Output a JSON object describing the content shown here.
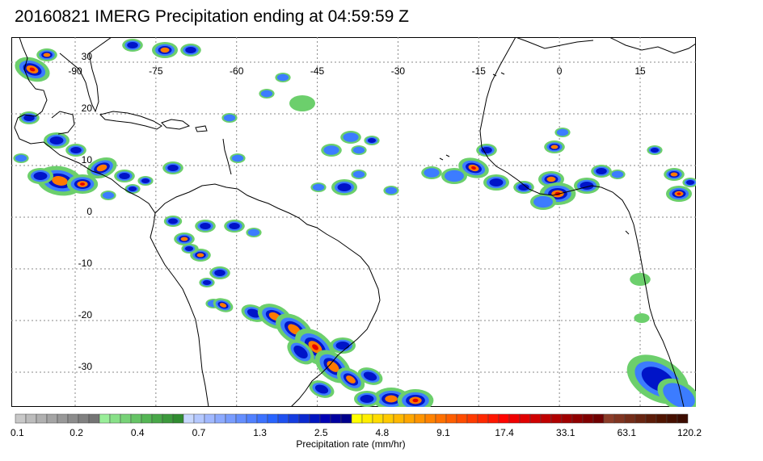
{
  "title": "20160821 IMERG Precipitation ending at 04:59:59 Z",
  "map": {
    "lon_labels": [
      "-90",
      "-75",
      "-60",
      "-45",
      "-30",
      "-15",
      "0",
      "15"
    ],
    "lat_labels": [
      "30",
      "20",
      "10",
      "0",
      "-10",
      "-20",
      "-30"
    ]
  },
  "colorbar": {
    "label": "Precipitation rate (mm/hr)",
    "tick_labels": [
      "0.1",
      "0.2",
      "0.4",
      "0.7",
      "1.3",
      "2.5",
      "4.8",
      "9.1",
      "17.4",
      "33.1",
      "63.1",
      "120.2"
    ],
    "colors": [
      "#c8c8c8",
      "#bcbcbc",
      "#b0b0b0",
      "#a4a4a4",
      "#989898",
      "#8c8c8c",
      "#808080",
      "#747474",
      "#99ee99",
      "#88e088",
      "#77d277",
      "#66c466",
      "#55b655",
      "#48a848",
      "#3c9a3c",
      "#308c30",
      "#c8d8ff",
      "#b4c8ff",
      "#a0b8ff",
      "#8caaff",
      "#789cff",
      "#648eff",
      "#5080ff",
      "#3c72ff",
      "#2864ff",
      "#1e50f0",
      "#143ce0",
      "#0a28d0",
      "#0014c0",
      "#0000b4",
      "#0000a0",
      "#00008c",
      "#ffff00",
      "#ffee00",
      "#ffdc00",
      "#ffca00",
      "#ffb800",
      "#ffa600",
      "#ff9400",
      "#ff8200",
      "#ff7000",
      "#ff5e00",
      "#ff4c00",
      "#ff3a00",
      "#ff2800",
      "#ff1600",
      "#ff0400",
      "#f00000",
      "#e00000",
      "#d00000",
      "#c00000",
      "#b00000",
      "#a00000",
      "#900000",
      "#800000",
      "#700000",
      "#8c3c28",
      "#803420",
      "#742c18",
      "#682410",
      "#5c1c08",
      "#501400",
      "#461000",
      "#3c0c00"
    ]
  },
  "colors": {
    "grid": "#888888",
    "coast": "#000000",
    "precip_light": "#6ccf6c",
    "precip_mid": "#3c7cff",
    "precip_heavy": "#0014c8",
    "precip_max": "#ff7a00",
    "precip_core": "#e60000"
  }
}
